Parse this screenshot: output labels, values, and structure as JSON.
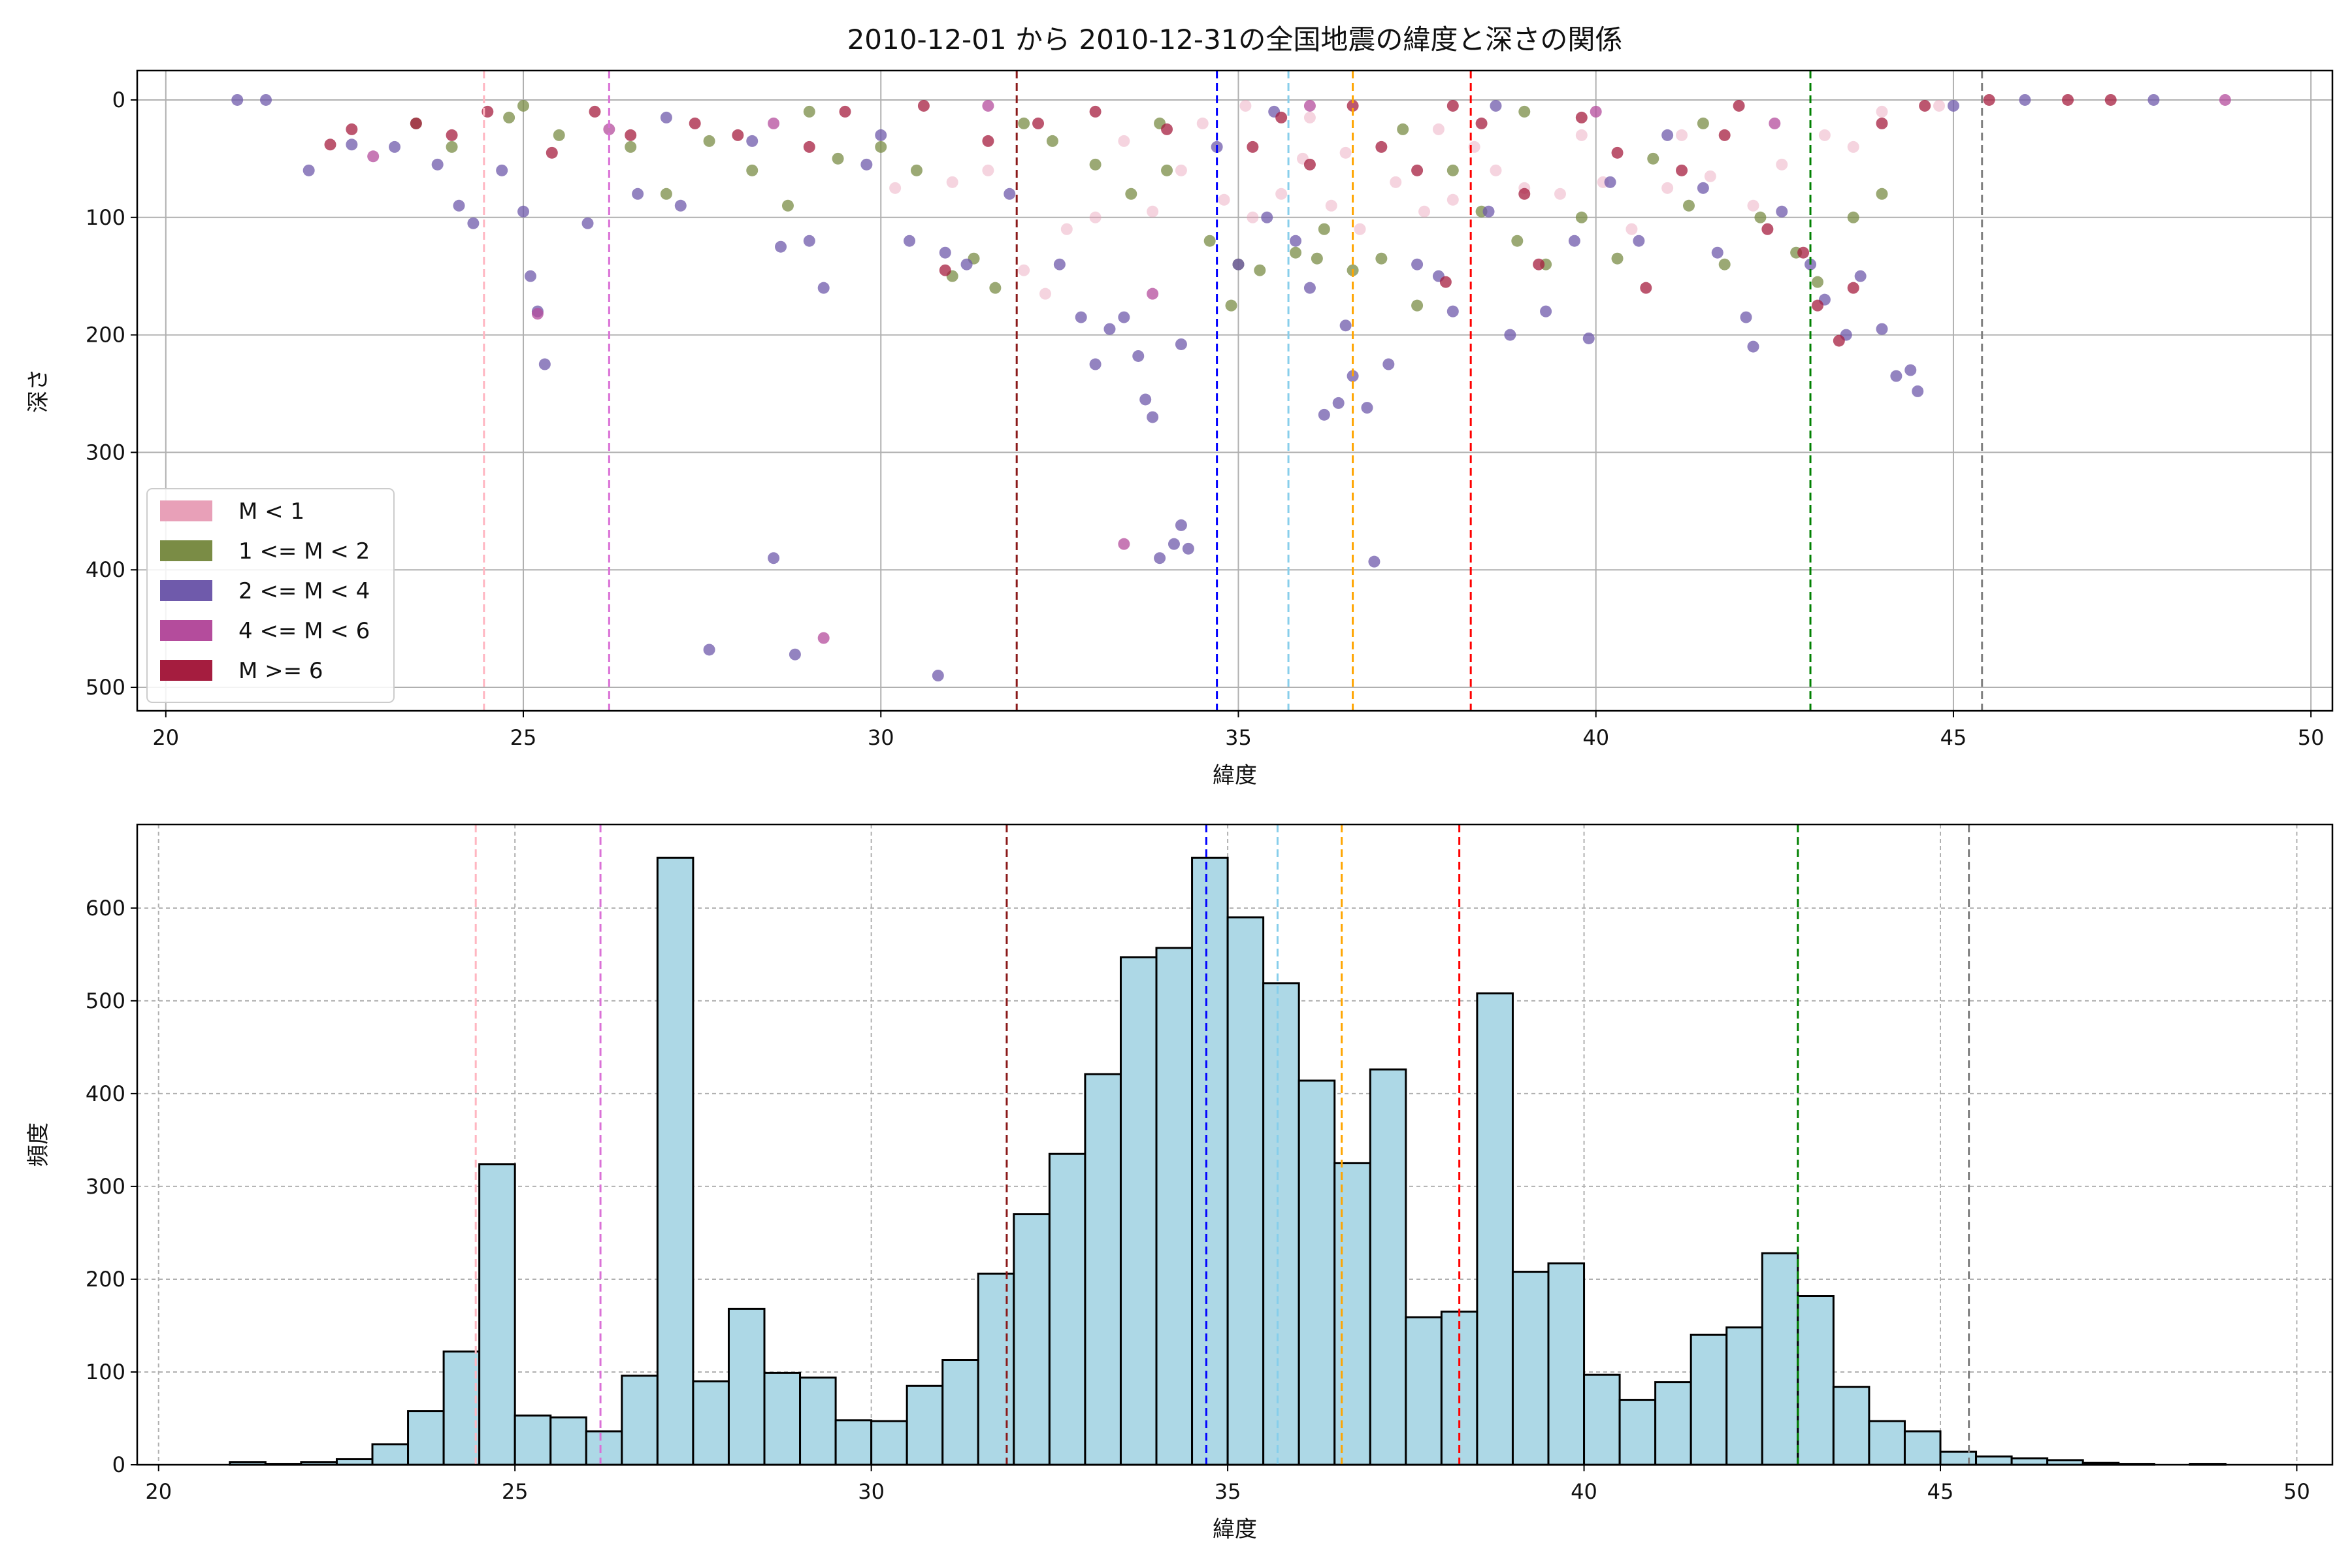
{
  "chart_data": [
    {
      "type": "scatter",
      "title": "2010-12-01 から 2010-12-31の全国地震の緯度と深さの関係",
      "xlabel": "緯度",
      "ylabel": "深さ",
      "xlim": [
        19.6,
        50.3
      ],
      "ylim": [
        520,
        -25
      ],
      "y_inverted": true,
      "xticks": [
        20,
        25,
        30,
        35,
        40,
        45,
        50
      ],
      "yticks": [
        0,
        100,
        200,
        300,
        400,
        500
      ],
      "grid": true,
      "legend_position": "lower-left",
      "vlines": [
        {
          "x": 24.45,
          "color": "#ffb6c1"
        },
        {
          "x": 26.2,
          "color": "#da70d6"
        },
        {
          "x": 31.9,
          "color": "#8b1a1a"
        },
        {
          "x": 34.7,
          "color": "#0000ff"
        },
        {
          "x": 35.7,
          "color": "#87ceeb"
        },
        {
          "x": 36.6,
          "color": "#ffa500"
        },
        {
          "x": 38.25,
          "color": "#ff0000"
        },
        {
          "x": 43.0,
          "color": "#008000"
        },
        {
          "x": 45.4,
          "color": "#808080"
        }
      ],
      "series": [
        {
          "name": "M < 1",
          "color": "#e8a0b8",
          "points": [
            [
              30.2,
              75
            ],
            [
              31.0,
              70
            ],
            [
              32.0,
              145
            ],
            [
              32.3,
              165
            ],
            [
              33.0,
              100
            ],
            [
              33.8,
              95
            ],
            [
              34.2,
              60
            ],
            [
              34.8,
              85
            ],
            [
              35.2,
              100
            ],
            [
              35.6,
              80
            ],
            [
              35.9,
              50
            ],
            [
              36.3,
              90
            ],
            [
              36.7,
              110
            ],
            [
              37.2,
              70
            ],
            [
              37.6,
              95
            ],
            [
              38.0,
              85
            ],
            [
              38.6,
              60
            ],
            [
              39.0,
              75
            ],
            [
              39.5,
              80
            ],
            [
              40.1,
              70
            ],
            [
              40.5,
              110
            ],
            [
              41.0,
              75
            ],
            [
              41.6,
              65
            ],
            [
              42.2,
              90
            ],
            [
              43.2,
              30
            ],
            [
              44.0,
              10
            ],
            [
              34.5,
              20
            ],
            [
              36.0,
              15
            ],
            [
              37.8,
              25
            ],
            [
              39.8,
              30
            ],
            [
              35.1,
              5
            ],
            [
              33.4,
              35
            ],
            [
              36.5,
              45
            ],
            [
              38.3,
              40
            ],
            [
              41.2,
              30
            ],
            [
              42.6,
              55
            ],
            [
              43.6,
              40
            ],
            [
              44.8,
              5
            ],
            [
              32.6,
              110
            ],
            [
              31.5,
              60
            ]
          ]
        },
        {
          "name": "1 <= M < 2",
          "color": "#7a8c45",
          "points": [
            [
              23.5,
              20
            ],
            [
              24.0,
              40
            ],
            [
              24.8,
              15
            ],
            [
              25.5,
              30
            ],
            [
              26.5,
              40
            ],
            [
              27.0,
              80
            ],
            [
              27.6,
              35
            ],
            [
              28.2,
              60
            ],
            [
              28.7,
              90
            ],
            [
              29.4,
              50
            ],
            [
              30.0,
              40
            ],
            [
              30.5,
              60
            ],
            [
              31.0,
              150
            ],
            [
              31.3,
              135
            ],
            [
              31.6,
              160
            ],
            [
              32.0,
              20
            ],
            [
              32.4,
              35
            ],
            [
              33.0,
              55
            ],
            [
              33.5,
              80
            ],
            [
              34.0,
              60
            ],
            [
              34.6,
              120
            ],
            [
              35.0,
              140
            ],
            [
              35.3,
              145
            ],
            [
              35.8,
              130
            ],
            [
              36.2,
              110
            ],
            [
              36.6,
              145
            ],
            [
              37.0,
              135
            ],
            [
              37.5,
              175
            ],
            [
              38.0,
              60
            ],
            [
              38.4,
              95
            ],
            [
              38.9,
              120
            ],
            [
              39.3,
              140
            ],
            [
              39.8,
              100
            ],
            [
              40.3,
              135
            ],
            [
              40.8,
              50
            ],
            [
              41.3,
              90
            ],
            [
              41.8,
              140
            ],
            [
              42.3,
              100
            ],
            [
              42.8,
              130
            ],
            [
              43.1,
              155
            ],
            [
              43.6,
              100
            ],
            [
              44.0,
              80
            ],
            [
              34.9,
              175
            ],
            [
              36.1,
              135
            ],
            [
              33.9,
              20
            ],
            [
              39.0,
              10
            ],
            [
              41.5,
              20
            ],
            [
              25.0,
              5
            ],
            [
              29.0,
              10
            ],
            [
              37.3,
              25
            ]
          ]
        },
        {
          "name": "2 <= M < 4",
          "color": "#6f5aab",
          "points": [
            [
              21.0,
              0
            ],
            [
              21.4,
              0
            ],
            [
              22.0,
              60
            ],
            [
              22.6,
              38
            ],
            [
              23.2,
              40
            ],
            [
              23.8,
              55
            ],
            [
              24.1,
              90
            ],
            [
              24.3,
              105
            ],
            [
              24.7,
              60
            ],
            [
              25.0,
              95
            ],
            [
              25.1,
              150
            ],
            [
              25.2,
              180
            ],
            [
              25.3,
              225
            ],
            [
              25.9,
              105
            ],
            [
              26.6,
              80
            ],
            [
              27.2,
              90
            ],
            [
              27.6,
              468
            ],
            [
              28.2,
              35
            ],
            [
              28.5,
              390
            ],
            [
              28.6,
              125
            ],
            [
              28.8,
              472
            ],
            [
              29.0,
              120
            ],
            [
              29.2,
              160
            ],
            [
              29.8,
              55
            ],
            [
              30.4,
              120
            ],
            [
              30.8,
              490
            ],
            [
              30.9,
              130
            ],
            [
              31.2,
              140
            ],
            [
              31.8,
              80
            ],
            [
              32.5,
              140
            ],
            [
              32.8,
              185
            ],
            [
              33.0,
              225
            ],
            [
              33.2,
              195
            ],
            [
              33.4,
              185
            ],
            [
              33.6,
              218
            ],
            [
              33.7,
              255
            ],
            [
              33.8,
              270
            ],
            [
              33.9,
              390
            ],
            [
              34.1,
              378
            ],
            [
              34.2,
              362
            ],
            [
              34.3,
              382
            ],
            [
              34.2,
              208
            ],
            [
              34.7,
              40
            ],
            [
              35.0,
              140
            ],
            [
              35.4,
              100
            ],
            [
              35.8,
              120
            ],
            [
              36.0,
              160
            ],
            [
              36.2,
              268
            ],
            [
              36.4,
              258
            ],
            [
              36.5,
              192
            ],
            [
              36.6,
              235
            ],
            [
              36.9,
              393
            ],
            [
              36.8,
              262
            ],
            [
              37.1,
              225
            ],
            [
              37.5,
              140
            ],
            [
              37.8,
              150
            ],
            [
              38.0,
              180
            ],
            [
              38.5,
              95
            ],
            [
              38.8,
              200
            ],
            [
              39.3,
              180
            ],
            [
              39.7,
              120
            ],
            [
              39.9,
              203
            ],
            [
              40.2,
              70
            ],
            [
              40.6,
              120
            ],
            [
              41.0,
              30
            ],
            [
              41.5,
              75
            ],
            [
              41.7,
              130
            ],
            [
              42.1,
              185
            ],
            [
              42.2,
              210
            ],
            [
              42.6,
              95
            ],
            [
              43.0,
              140
            ],
            [
              43.2,
              170
            ],
            [
              43.5,
              200
            ],
            [
              43.7,
              150
            ],
            [
              44.0,
              195
            ],
            [
              44.2,
              235
            ],
            [
              44.4,
              230
            ],
            [
              44.5,
              248
            ],
            [
              45.0,
              5
            ],
            [
              46.0,
              0
            ],
            [
              47.8,
              0
            ],
            [
              35.5,
              10
            ],
            [
              38.6,
              5
            ],
            [
              30.0,
              30
            ],
            [
              27.0,
              15
            ]
          ]
        },
        {
          "name": "4 <= M < 6",
          "color": "#b44c9c",
          "points": [
            [
              22.9,
              48
            ],
            [
              25.2,
              182
            ],
            [
              26.2,
              25
            ],
            [
              29.2,
              458
            ],
            [
              33.4,
              378
            ],
            [
              33.8,
              165
            ],
            [
              48.8,
              0
            ],
            [
              28.5,
              20
            ],
            [
              36.0,
              5
            ],
            [
              40.0,
              10
            ],
            [
              42.5,
              20
            ],
            [
              31.5,
              5
            ]
          ]
        },
        {
          "name": "M >= 6",
          "color": "#a51d3f",
          "points": [
            [
              22.3,
              38
            ],
            [
              22.6,
              25
            ],
            [
              23.5,
              20
            ],
            [
              24.0,
              30
            ],
            [
              24.5,
              10
            ],
            [
              25.4,
              45
            ],
            [
              26.0,
              10
            ],
            [
              26.5,
              30
            ],
            [
              27.4,
              20
            ],
            [
              28.0,
              30
            ],
            [
              29.0,
              40
            ],
            [
              29.5,
              10
            ],
            [
              30.6,
              5
            ],
            [
              30.9,
              145
            ],
            [
              31.5,
              35
            ],
            [
              32.2,
              20
            ],
            [
              33.0,
              10
            ],
            [
              34.0,
              25
            ],
            [
              35.2,
              40
            ],
            [
              35.6,
              15
            ],
            [
              36.0,
              55
            ],
            [
              36.6,
              5
            ],
            [
              37.0,
              40
            ],
            [
              37.5,
              60
            ],
            [
              37.9,
              155
            ],
            [
              38.4,
              20
            ],
            [
              39.0,
              80
            ],
            [
              39.2,
              140
            ],
            [
              39.8,
              15
            ],
            [
              40.3,
              45
            ],
            [
              40.7,
              160
            ],
            [
              41.2,
              60
            ],
            [
              41.8,
              30
            ],
            [
              42.4,
              110
            ],
            [
              42.9,
              130
            ],
            [
              43.1,
              175
            ],
            [
              43.4,
              205
            ],
            [
              43.6,
              160
            ],
            [
              44.0,
              20
            ],
            [
              44.6,
              5
            ],
            [
              45.5,
              0
            ],
            [
              46.6,
              0
            ],
            [
              47.2,
              0
            ],
            [
              42.0,
              5
            ],
            [
              38.0,
              5
            ]
          ]
        }
      ]
    },
    {
      "type": "bar",
      "xlabel": "緯度",
      "ylabel": "頻度",
      "xlim": [
        19.7,
        50.5
      ],
      "ylim": [
        0,
        690
      ],
      "xticks": [
        20,
        25,
        30,
        35,
        40,
        45,
        50
      ],
      "yticks": [
        0,
        100,
        200,
        300,
        400,
        500,
        600
      ],
      "grid": true,
      "bin_width": 0.5,
      "bin_start": 21.0,
      "values": [
        3,
        1,
        3,
        6,
        22,
        58,
        122,
        324,
        53,
        51,
        36,
        96,
        654,
        90,
        168,
        99,
        94,
        48,
        47,
        85,
        113,
        206,
        270,
        335,
        421,
        547,
        557,
        654,
        590,
        519,
        414,
        325,
        426,
        159,
        165,
        508,
        208,
        217,
        97,
        70,
        89,
        140,
        148,
        228,
        182,
        84,
        47,
        36,
        14,
        9,
        7,
        5,
        2,
        1,
        0,
        1
      ],
      "vlines": [
        {
          "x": 24.45,
          "color": "#ffb6c1"
        },
        {
          "x": 26.2,
          "color": "#da70d6"
        },
        {
          "x": 31.9,
          "color": "#8b1a1a"
        },
        {
          "x": 34.7,
          "color": "#0000ff"
        },
        {
          "x": 35.7,
          "color": "#87ceeb"
        },
        {
          "x": 36.6,
          "color": "#ffa500"
        },
        {
          "x": 38.25,
          "color": "#ff0000"
        },
        {
          "x": 43.0,
          "color": "#008000"
        },
        {
          "x": 45.4,
          "color": "#808080"
        }
      ],
      "bar_color": "#add8e6"
    }
  ]
}
